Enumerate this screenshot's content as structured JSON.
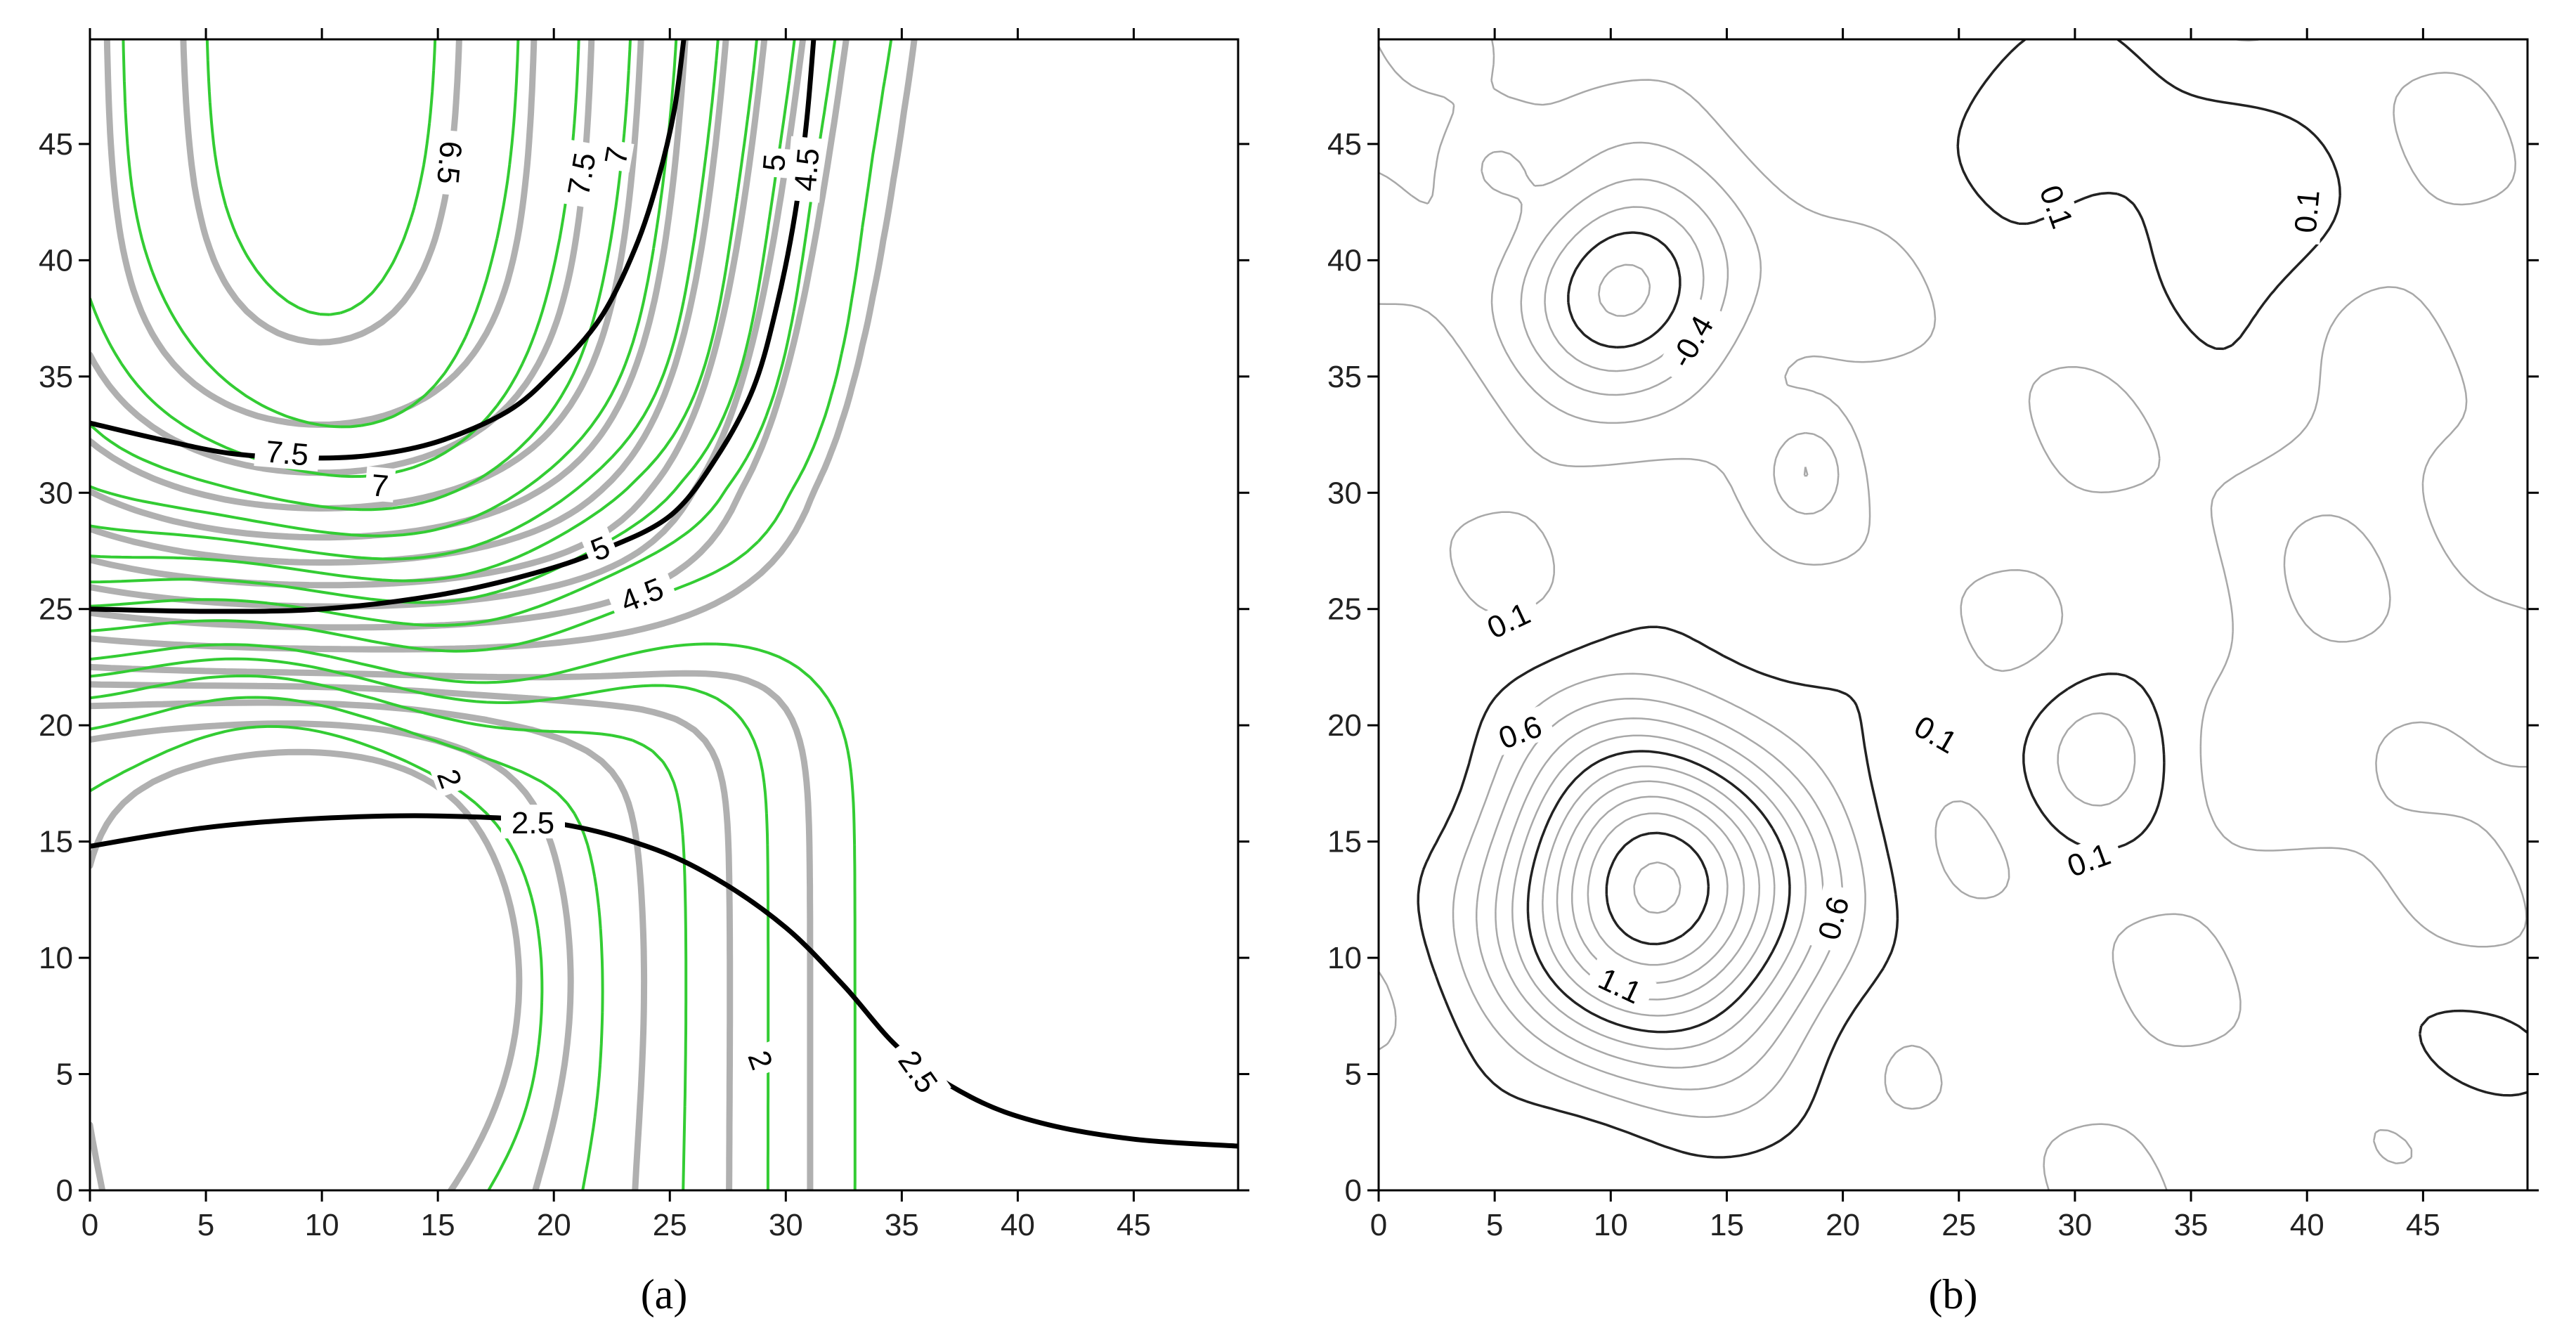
{
  "chart_data": [
    {
      "type": "contour",
      "caption": "(a)",
      "x_ticks": [
        0,
        5,
        10,
        15,
        20,
        25,
        30,
        35,
        40,
        45
      ],
      "y_ticks": [
        0,
        5,
        10,
        15,
        20,
        25,
        30,
        35,
        40,
        45
      ],
      "xlim": [
        0,
        49.5
      ],
      "ylim": [
        0,
        49.5
      ],
      "grid": false,
      "colors": {
        "thin_green": "#33cc33",
        "grey": "#b0b0b0",
        "highlight": "#000000"
      },
      "highlighted_contours": [
        {
          "level": "7.5",
          "points": [
            [
              0,
              33
            ],
            [
              3,
              32.3
            ],
            [
              6,
              31.7
            ],
            [
              9,
              31.5
            ],
            [
              12,
              31.6
            ],
            [
              15,
              32.2
            ],
            [
              18,
              33.5
            ],
            [
              20,
              35.2
            ],
            [
              22,
              37.5
            ],
            [
              23.5,
              40.5
            ],
            [
              24.5,
              43.5
            ],
            [
              25.2,
              46.5
            ],
            [
              25.6,
              49.5
            ]
          ]
        },
        {
          "level": "5",
          "points": [
            [
              0,
              25
            ],
            [
              5,
              24.9
            ],
            [
              10,
              25
            ],
            [
              15,
              25.6
            ],
            [
              19,
              26.5
            ],
            [
              22,
              27.5
            ],
            [
              25,
              29
            ],
            [
              27,
              31.5
            ],
            [
              28.6,
              34.5
            ],
            [
              29.6,
              38
            ],
            [
              30.4,
              42
            ],
            [
              30.9,
              46
            ],
            [
              31.2,
              49.5
            ]
          ]
        },
        {
          "level": "2.5",
          "points": [
            [
              0,
              14.8
            ],
            [
              5,
              15.6
            ],
            [
              10,
              16
            ],
            [
              15,
              16.1
            ],
            [
              20,
              15.8
            ],
            [
              24,
              14.8
            ],
            [
              27,
              13.4
            ],
            [
              30,
              11.3
            ],
            [
              32.5,
              8.8
            ],
            [
              35,
              6
            ],
            [
              38,
              4
            ],
            [
              41,
              2.9
            ],
            [
              45,
              2.2
            ],
            [
              49.5,
              1.9
            ]
          ]
        }
      ],
      "contour_labels": [
        {
          "text": "7.5",
          "x": 8.5,
          "y": 31.7,
          "angle": 5
        },
        {
          "text": "7",
          "x": 12.5,
          "y": 30.3,
          "angle": 5
        },
        {
          "text": "5",
          "x": 22,
          "y": 27.6,
          "angle": -22
        },
        {
          "text": "4.5",
          "x": 23.8,
          "y": 25.6,
          "angle": -22
        },
        {
          "text": "2",
          "x": 15.5,
          "y": 17.7,
          "angle": 70
        },
        {
          "text": "2.5",
          "x": 19.1,
          "y": 15.8,
          "angle": 0
        },
        {
          "text": "2.5",
          "x": 35.7,
          "y": 5.1,
          "angle": 55
        },
        {
          "text": "2",
          "x": 28.9,
          "y": 5.6,
          "angle": 70
        },
        {
          "text": "6.5",
          "x": 15.5,
          "y": 44.2,
          "angle": 95
        },
        {
          "text": "7.5",
          "x": 21.2,
          "y": 43.7,
          "angle": -80
        },
        {
          "text": "7",
          "x": 22.7,
          "y": 44.5,
          "angle": -80
        },
        {
          "text": "5",
          "x": 29.5,
          "y": 44.2,
          "angle": -85
        },
        {
          "text": "4.5",
          "x": 30.9,
          "y": 43.9,
          "angle": -85
        }
      ]
    },
    {
      "type": "contour",
      "caption": "(b)",
      "x_ticks": [
        0,
        5,
        10,
        15,
        20,
        25,
        30,
        35,
        40,
        45
      ],
      "y_ticks": [
        0,
        5,
        10,
        15,
        20,
        25,
        30,
        35,
        40,
        45
      ],
      "xlim": [
        0,
        49.5
      ],
      "ylim": [
        0,
        49.5
      ],
      "grid": false,
      "colors": {
        "thin_grey": "#a8a8a8",
        "highlight": "#222222"
      },
      "peak_centers": [
        {
          "x": 12,
          "y": 12.8,
          "amplitude": 1.25,
          "kind": "positive"
        },
        {
          "x": 10.8,
          "y": 38.8,
          "amplitude": -0.55,
          "kind": "negative"
        }
      ],
      "contour_labels": [
        {
          "text": "0.1",
          "x": 5.6,
          "y": 24.5,
          "angle": -25
        },
        {
          "text": "0.6",
          "x": 6.1,
          "y": 19.7,
          "angle": -20
        },
        {
          "text": "0.1",
          "x": 24,
          "y": 19.6,
          "angle": 30
        },
        {
          "text": "0.1",
          "x": 30.6,
          "y": 14.2,
          "angle": -20
        },
        {
          "text": "0.6",
          "x": 19.6,
          "y": 11.7,
          "angle": -75
        },
        {
          "text": "1.1",
          "x": 10.4,
          "y": 8.8,
          "angle": 25
        },
        {
          "text": "-0.4",
          "x": 13.5,
          "y": 36.5,
          "angle": -60
        },
        {
          "text": "0.1",
          "x": 29.2,
          "y": 42.3,
          "angle": 70
        },
        {
          "text": "0.1",
          "x": 40,
          "y": 42.1,
          "angle": -85
        }
      ]
    }
  ]
}
